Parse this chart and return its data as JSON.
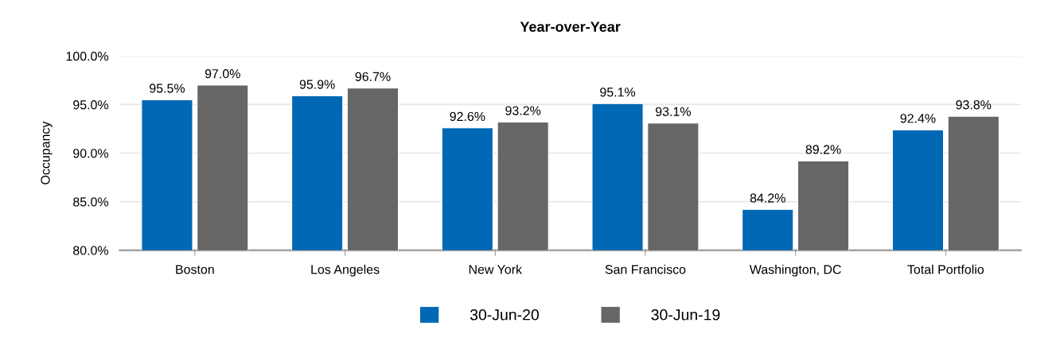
{
  "chart_data": {
    "type": "bar",
    "title": "Year-over-Year",
    "ylabel": "Occupancy",
    "categories": [
      "Boston",
      "Los Angeles",
      "New York",
      "San Francisco",
      "Washington, DC",
      "Total Portfolio"
    ],
    "series": [
      {
        "name": "30-Jun-20",
        "color": "#0068b4",
        "values": [
          95.5,
          95.9,
          92.6,
          95.1,
          84.2,
          92.4
        ],
        "value_labels": [
          "95.5%",
          "95.9%",
          "92.6%",
          "95.1%",
          "84.2%",
          "92.4%"
        ]
      },
      {
        "name": "30-Jun-19",
        "color": "#666666",
        "values": [
          97.0,
          96.7,
          93.2,
          93.1,
          89.2,
          93.8
        ],
        "value_labels": [
          "97.0%",
          "96.7%",
          "93.2%",
          "93.1%",
          "89.2%",
          "93.8%"
        ]
      }
    ],
    "ylim": [
      80,
      100
    ],
    "yticks": [
      {
        "value": 80,
        "label": "80.0%"
      },
      {
        "value": 85,
        "label": "85.0%"
      },
      {
        "value": 90,
        "label": "90.0%"
      },
      {
        "value": 95,
        "label": "95.0%"
      },
      {
        "value": 100,
        "label": "100.0%"
      }
    ],
    "grid": "y",
    "legend": "bottom"
  }
}
